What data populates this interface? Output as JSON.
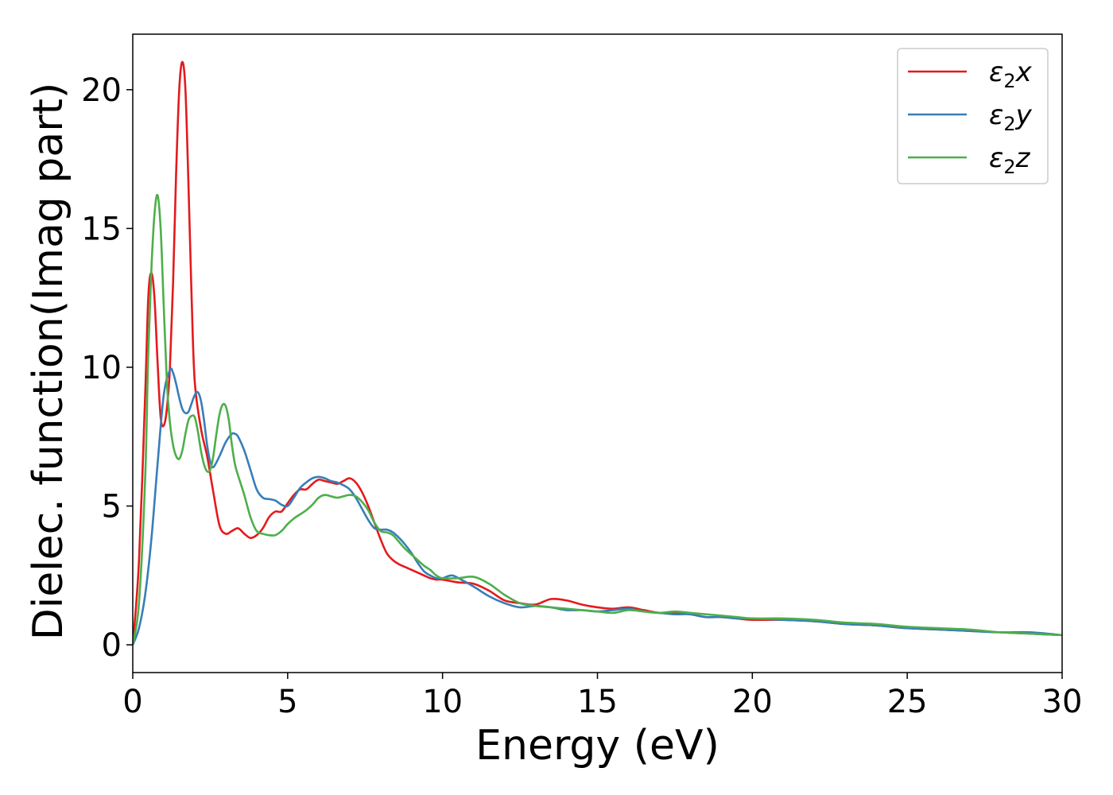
{
  "chart_data": {
    "type": "line",
    "title": "",
    "xlabel": "Energy (eV)",
    "ylabel": "Dielec. function(Imag part)",
    "xlim": [
      0,
      30
    ],
    "ylim": [
      -1,
      22
    ],
    "xticks": [
      0,
      5,
      10,
      15,
      20,
      25,
      30
    ],
    "yticks": [
      0,
      5,
      10,
      15,
      20
    ],
    "grid": false,
    "legend_position": "top-right",
    "series": [
      {
        "name": "ε₂x",
        "legend": {
          "base": "ε",
          "sub": "2",
          "suffix": "x"
        },
        "color": "#e41a1c",
        "x": [
          0,
          0.2,
          0.4,
          0.5,
          0.6,
          0.7,
          0.8,
          0.9,
          1.0,
          1.1,
          1.2,
          1.3,
          1.4,
          1.5,
          1.6,
          1.7,
          1.8,
          1.9,
          2.0,
          2.2,
          2.4,
          2.6,
          2.8,
          3.0,
          3.2,
          3.4,
          3.6,
          3.8,
          4.0,
          4.2,
          4.4,
          4.6,
          4.8,
          5.0,
          5.2,
          5.4,
          5.6,
          5.8,
          6.0,
          6.2,
          6.4,
          6.6,
          6.8,
          7.0,
          7.2,
          7.4,
          7.6,
          7.8,
          8.0,
          8.2,
          8.4,
          8.6,
          8.8,
          9.0,
          9.2,
          9.4,
          9.6,
          9.8,
          10.0,
          10.5,
          11.0,
          11.5,
          12.0,
          12.5,
          13.0,
          13.5,
          14.0,
          14.5,
          15.0,
          15.5,
          16.0,
          16.5,
          17.0,
          17.5,
          18.0,
          18.5,
          19.0,
          19.5,
          20.0,
          21.0,
          22.0,
          23.0,
          24.0,
          25.0,
          26.0,
          27.0,
          28.0,
          29.0,
          30.0
        ],
        "y": [
          0,
          3.0,
          9.0,
          12.5,
          13.4,
          12.5,
          10.2,
          8.2,
          7.9,
          8.5,
          10.0,
          13.0,
          17.0,
          20.0,
          21.0,
          20.0,
          16.5,
          12.5,
          9.5,
          7.8,
          6.8,
          5.5,
          4.3,
          4.0,
          4.1,
          4.2,
          4.0,
          3.85,
          3.95,
          4.2,
          4.6,
          4.8,
          4.8,
          5.1,
          5.4,
          5.6,
          5.6,
          5.8,
          5.95,
          5.9,
          5.85,
          5.8,
          5.9,
          6.0,
          5.85,
          5.5,
          5.0,
          4.4,
          3.8,
          3.3,
          3.05,
          2.9,
          2.8,
          2.7,
          2.6,
          2.5,
          2.4,
          2.35,
          2.35,
          2.25,
          2.2,
          1.95,
          1.6,
          1.5,
          1.45,
          1.65,
          1.6,
          1.45,
          1.35,
          1.3,
          1.35,
          1.25,
          1.15,
          1.15,
          1.1,
          1.0,
          1.0,
          0.95,
          0.9,
          0.9,
          0.85,
          0.75,
          0.7,
          0.6,
          0.55,
          0.5,
          0.45,
          0.4,
          0.35
        ]
      },
      {
        "name": "ε₂y",
        "legend": {
          "base": "ε",
          "sub": "2",
          "suffix": "y"
        },
        "color": "#377eb8",
        "x": [
          0,
          0.2,
          0.4,
          0.6,
          0.8,
          1.0,
          1.2,
          1.3,
          1.4,
          1.5,
          1.6,
          1.7,
          1.8,
          1.9,
          2.0,
          2.1,
          2.2,
          2.3,
          2.4,
          2.5,
          2.6,
          2.8,
          3.0,
          3.2,
          3.3,
          3.4,
          3.6,
          3.8,
          4.0,
          4.2,
          4.4,
          4.6,
          4.8,
          5.0,
          5.2,
          5.4,
          5.6,
          5.8,
          6.0,
          6.2,
          6.4,
          6.6,
          6.8,
          7.0,
          7.2,
          7.4,
          7.6,
          7.8,
          8.0,
          8.2,
          8.4,
          8.6,
          8.8,
          9.0,
          9.2,
          9.4,
          9.6,
          9.8,
          10.0,
          10.3,
          10.6,
          11.0,
          11.5,
          12.0,
          12.5,
          13.0,
          13.5,
          14.0,
          14.5,
          15.0,
          15.5,
          16.0,
          16.5,
          17.0,
          17.5,
          18.0,
          18.5,
          19.0,
          19.5,
          20.0,
          21.0,
          22.0,
          23.0,
          24.0,
          25.0,
          26.0,
          27.0,
          28.0,
          29.0,
          30.0
        ],
        "y": [
          0,
          0.6,
          1.8,
          3.8,
          6.5,
          9.0,
          9.9,
          9.8,
          9.4,
          8.9,
          8.5,
          8.35,
          8.4,
          8.7,
          9.0,
          9.1,
          8.8,
          8.1,
          7.2,
          6.6,
          6.4,
          6.8,
          7.3,
          7.6,
          7.6,
          7.5,
          7.0,
          6.3,
          5.6,
          5.3,
          5.25,
          5.2,
          5.05,
          5.0,
          5.3,
          5.65,
          5.85,
          6.0,
          6.05,
          6.0,
          5.9,
          5.85,
          5.75,
          5.6,
          5.3,
          4.9,
          4.5,
          4.2,
          4.15,
          4.15,
          4.05,
          3.85,
          3.6,
          3.3,
          2.95,
          2.65,
          2.5,
          2.4,
          2.4,
          2.5,
          2.35,
          2.1,
          1.75,
          1.5,
          1.35,
          1.4,
          1.35,
          1.25,
          1.25,
          1.2,
          1.25,
          1.3,
          1.2,
          1.15,
          1.1,
          1.1,
          1.0,
          1.0,
          0.95,
          0.95,
          0.9,
          0.85,
          0.75,
          0.7,
          0.6,
          0.55,
          0.5,
          0.45,
          0.45,
          0.35
        ]
      },
      {
        "name": "ε₂z",
        "legend": {
          "base": "ε",
          "sub": "2",
          "suffix": "z"
        },
        "color": "#4daf4a",
        "x": [
          0,
          0.2,
          0.4,
          0.5,
          0.6,
          0.7,
          0.8,
          0.9,
          1.0,
          1.1,
          1.2,
          1.3,
          1.4,
          1.5,
          1.6,
          1.7,
          1.8,
          1.9,
          2.0,
          2.1,
          2.2,
          2.3,
          2.4,
          2.5,
          2.6,
          2.7,
          2.8,
          2.9,
          3.0,
          3.1,
          3.2,
          3.3,
          3.4,
          3.6,
          3.8,
          4.0,
          4.2,
          4.4,
          4.6,
          4.8,
          5.0,
          5.2,
          5.4,
          5.6,
          5.8,
          6.0,
          6.2,
          6.4,
          6.6,
          6.8,
          7.0,
          7.2,
          7.4,
          7.6,
          7.8,
          8.0,
          8.2,
          8.4,
          8.6,
          8.8,
          9.0,
          9.2,
          9.4,
          9.6,
          9.8,
          10.0,
          10.5,
          11.0,
          11.5,
          12.0,
          12.5,
          13.0,
          13.5,
          14.0,
          14.5,
          15.0,
          15.5,
          16.0,
          16.5,
          17.0,
          17.5,
          18.0,
          18.5,
          19.0,
          19.5,
          20.0,
          21.0,
          22.0,
          23.0,
          24.0,
          25.0,
          26.0,
          27.0,
          28.0,
          29.0,
          30.0
        ],
        "y": [
          0,
          1.5,
          6.0,
          10.5,
          13.5,
          15.5,
          16.2,
          15.0,
          12.2,
          9.5,
          8.0,
          7.2,
          6.8,
          6.7,
          7.0,
          7.6,
          8.1,
          8.25,
          8.2,
          7.7,
          7.0,
          6.5,
          6.25,
          6.3,
          6.8,
          7.6,
          8.3,
          8.65,
          8.6,
          8.1,
          7.2,
          6.5,
          6.1,
          5.4,
          4.6,
          4.1,
          4.0,
          3.95,
          3.95,
          4.1,
          4.35,
          4.55,
          4.7,
          4.85,
          5.05,
          5.3,
          5.4,
          5.35,
          5.3,
          5.35,
          5.4,
          5.35,
          5.15,
          4.85,
          4.4,
          4.1,
          4.05,
          3.95,
          3.7,
          3.45,
          3.25,
          3.05,
          2.85,
          2.7,
          2.5,
          2.4,
          2.4,
          2.45,
          2.2,
          1.8,
          1.5,
          1.4,
          1.35,
          1.3,
          1.25,
          1.2,
          1.15,
          1.25,
          1.2,
          1.15,
          1.2,
          1.15,
          1.1,
          1.05,
          1.0,
          0.95,
          0.95,
          0.9,
          0.8,
          0.75,
          0.65,
          0.6,
          0.55,
          0.45,
          0.4,
          0.35
        ]
      }
    ]
  }
}
